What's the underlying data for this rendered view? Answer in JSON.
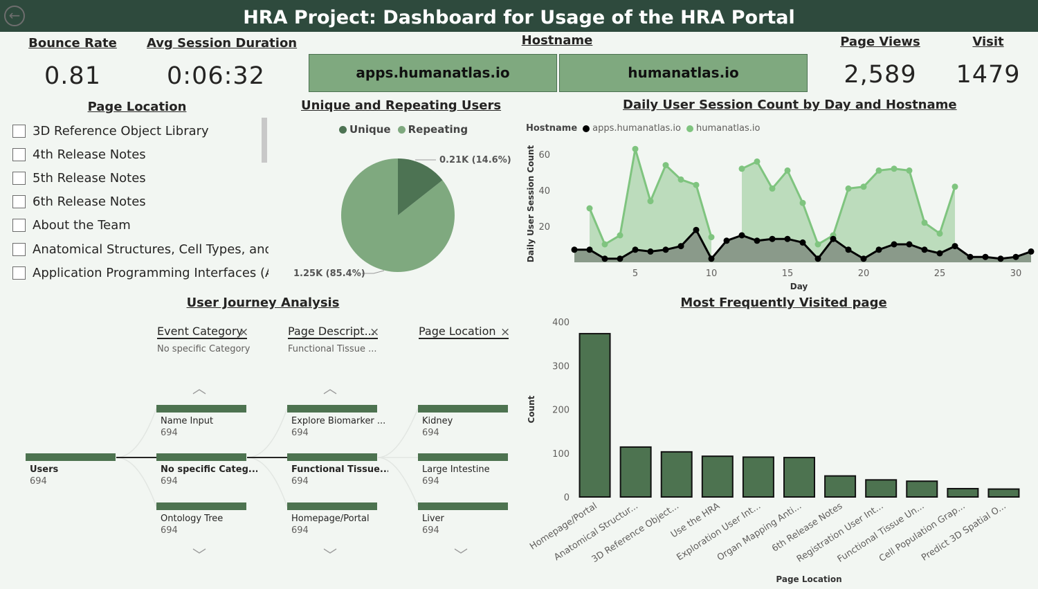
{
  "header": {
    "title": "HRA Project: Dashboard for Usage of the HRA Portal"
  },
  "kpis": {
    "bounce_rate": {
      "label": "Bounce Rate",
      "value": "0.81"
    },
    "avg_session": {
      "label": "Avg Session Duration",
      "value": "0:06:32"
    },
    "page_views": {
      "label": "Page Views",
      "value": "2,589"
    },
    "visit": {
      "label": "Visit",
      "value": "1479"
    }
  },
  "hostname": {
    "title": "Hostname",
    "tiles": [
      "apps.humanatlas.io",
      "humanatlas.io"
    ]
  },
  "page_location_slicer": {
    "title": "Page Location",
    "items": [
      "3D Reference Object Library",
      "4th Release Notes",
      "5th Release Notes",
      "6th Release Notes",
      "About the Team",
      "Anatomical Structures, Cell Types, and ...",
      "Application Programming Interfaces (A..."
    ]
  },
  "pie": {
    "title": "Unique and Repeating Users",
    "legend": [
      "Unique",
      "Repeating"
    ],
    "label_small": "0.21K (14.6%)",
    "label_large": "1.25K (85.4%)",
    "colors": [
      "#4d7353",
      "#7fa97f"
    ]
  },
  "line": {
    "title": "Daily User Session Count by Day and Hostname",
    "legend_title": "Hostname",
    "legend": [
      "apps.humanatlas.io",
      "humanatlas.io"
    ],
    "ylabel": "Daily User Session Count",
    "xlabel": "Day",
    "yticks": [
      "20",
      "40",
      "60"
    ],
    "xticks": [
      "5",
      "10",
      "15",
      "20",
      "25",
      "30"
    ]
  },
  "tree": {
    "title": "User Journey Analysis",
    "columns": [
      {
        "header": "Event Category",
        "sub": "No specific Category"
      },
      {
        "header": "Page Descript...",
        "sub": "Functional Tissue ..."
      },
      {
        "header": "Page Location",
        "sub": ""
      }
    ],
    "root": {
      "label": "Users",
      "value": "694"
    },
    "col1": [
      {
        "label": "Name Input",
        "value": "694"
      },
      {
        "label": "No specific Categ...",
        "value": "694"
      },
      {
        "label": "Ontology Tree",
        "value": "694"
      }
    ],
    "col2": [
      {
        "label": "Explore Biomarker ...",
        "value": "694"
      },
      {
        "label": "Functional Tissue...",
        "value": "694"
      },
      {
        "label": "Homepage/Portal",
        "value": "694"
      }
    ],
    "col3": [
      {
        "label": "Kidney",
        "value": "694"
      },
      {
        "label": "Large Intestine",
        "value": "694"
      },
      {
        "label": "Liver",
        "value": "694"
      }
    ]
  },
  "bar": {
    "title": "Most Frequently Visited page",
    "ylabel": "Count",
    "xlabel": "Page Location",
    "color": "#4d7350"
  },
  "chart_data": [
    {
      "type": "pie",
      "title": "Unique and Repeating Users",
      "categories": [
        "Unique",
        "Repeating"
      ],
      "values": [
        1250,
        210
      ]
    },
    {
      "type": "area",
      "title": "Daily User Session Count by Day and Hostname",
      "xlabel": "Day",
      "ylabel": "Daily User Session Count",
      "x": [
        1,
        2,
        3,
        4,
        5,
        6,
        7,
        8,
        9,
        10,
        11,
        12,
        13,
        14,
        15,
        16,
        17,
        18,
        19,
        20,
        21,
        22,
        23,
        24,
        25,
        26,
        27,
        28,
        29,
        30,
        31
      ],
      "xlim": [
        0.5,
        31
      ],
      "ylim": [
        0,
        65
      ],
      "series": [
        {
          "name": "apps.humanatlas.io",
          "color": "#000000",
          "values": [
            7,
            7,
            2,
            2,
            7,
            6,
            7,
            9,
            18,
            2,
            12,
            15,
            12,
            13,
            13,
            11,
            2,
            13,
            7,
            2,
            7,
            10,
            10,
            7,
            5,
            9,
            3,
            3,
            2,
            3,
            6
          ]
        },
        {
          "name": "humanatlas.io",
          "color": "#7fc47f",
          "values": [
            null,
            30,
            10,
            15,
            63,
            34,
            54,
            46,
            43,
            14,
            null,
            52,
            56,
            41,
            51,
            33,
            10,
            15,
            41,
            42,
            51,
            52,
            51,
            22,
            16,
            42,
            null,
            null,
            null,
            null,
            null
          ]
        }
      ]
    },
    {
      "type": "bar",
      "title": "Most Frequently Visited page",
      "xlabel": "Page Location",
      "ylabel": "Count",
      "ylim": [
        0,
        400
      ],
      "yticks": [
        0,
        100,
        200,
        300,
        400
      ],
      "categories": [
        "Homepage/Portal",
        "Anatomical Structur...",
        "3D Reference Object...",
        "Use the HRA",
        "Exploration User Int...",
        "Organ Mapping Anti...",
        "6th Release Notes",
        "Registration User Int...",
        "Functional Tissue Un...",
        "Cell Population Grap...",
        "Predict 3D Spatial O..."
      ],
      "values": [
        373,
        114,
        103,
        93,
        91,
        90,
        48,
        39,
        36,
        19,
        18
      ]
    }
  ]
}
